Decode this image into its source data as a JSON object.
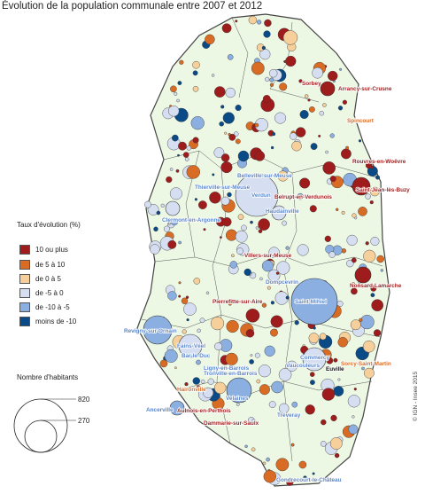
{
  "title": "Évolution de la population communale entre 2007 et 2012",
  "legend": {
    "heading": "Taux d'évolution (%)",
    "classes": [
      {
        "label": "10  ou plus",
        "color": "#9e1c1c"
      },
      {
        "label": "de 5 à 10",
        "color": "#d96c25"
      },
      {
        "label": "de 0 à 5",
        "color": "#f6cf9b"
      },
      {
        "label": "de -5 à 0",
        "color": "#d6dff2"
      },
      {
        "label": "de -10 à -5",
        "color": "#8aafe0"
      },
      {
        "label": "moins de -10",
        "color": "#0a4a86"
      }
    ]
  },
  "size_legend": {
    "heading": "Nombre d'habitants",
    "values": [
      "820",
      "270"
    ]
  },
  "credit": "© IGN - Insee 2015",
  "colors": {
    "map_fill": "#edf8e4",
    "boundary": "#444444",
    "dark_red": "#9e1c1c",
    "orange": "#d96c25",
    "light_orange": "#f6cf9b",
    "light_blue": "#d6dff2",
    "mid_blue": "#8aafe0",
    "dark_blue": "#0a4a86"
  },
  "town_labels": [
    {
      "name": "Sorbey",
      "class": "10 ou plus"
    },
    {
      "name": "Arrancy-sur-Crusne",
      "class": "10 ou plus"
    },
    {
      "name": "Spincourt",
      "class": "de 5 à 10"
    },
    {
      "name": "Rouvres-en-Woëvre",
      "class": "10 ou plus"
    },
    {
      "name": "Saint-Jean-lès-Buzy",
      "class": "10 ou plus"
    },
    {
      "name": "Belleville-sur-Meuse",
      "class": "de -5 à 0"
    },
    {
      "name": "Thierville-sur-Meuse",
      "class": "de -5 à 0"
    },
    {
      "name": "Verdun",
      "class": "de -5 à 0"
    },
    {
      "name": "Belrupt-en-Verdunois",
      "class": "10 ou plus"
    },
    {
      "name": "Haudainville",
      "class": "de -5 à 0"
    },
    {
      "name": "Clermont-en-Argonne",
      "class": "de -5 à 0"
    },
    {
      "name": "Villers-sur-Meuse",
      "class": "10 ou plus"
    },
    {
      "name": "Nonsard-Lamarche",
      "class": "10 ou plus"
    },
    {
      "name": "Dompcevrin",
      "class": "de -5 à 0"
    },
    {
      "name": "Pierrefitte-sur-Aire",
      "class": "10 ou plus"
    },
    {
      "name": "Saint-Mihiel",
      "class": "de -5 à 0"
    },
    {
      "name": "Revigny-sur-Ornain",
      "class": "de -5 à 0"
    },
    {
      "name": "Fains-Véel",
      "class": "de -5 à 0"
    },
    {
      "name": "Bar-le-Duc",
      "class": "de -5 à 0"
    },
    {
      "name": "Commercy",
      "class": "de -5 à 0"
    },
    {
      "name": "Vaucouleurs",
      "class": "de -5 à 0"
    },
    {
      "name": "Euville",
      "class": "de 0 à 5"
    },
    {
      "name": "Sorcy-Saint-Martin",
      "class": "de 5 à 10"
    },
    {
      "name": "Ligny-en-Barrois",
      "class": "de -5 à 0"
    },
    {
      "name": "Tronville-en-Barrois",
      "class": "de -5 à 0"
    },
    {
      "name": "Haironville",
      "class": "de 5 à 10"
    },
    {
      "name": "Velaines",
      "class": "de -5 à 0"
    },
    {
      "name": "Ancerville",
      "class": "de -5 à 0"
    },
    {
      "name": "Aulnois-en-Perthois",
      "class": "10 ou plus"
    },
    {
      "name": "Dammarie-sur-Saulx",
      "class": "10 ou plus"
    },
    {
      "name": "Tréveray",
      "class": "de -5 à 0"
    },
    {
      "name": "Gondrecourt-le-Château",
      "class": "de -5 à 0"
    }
  ]
}
